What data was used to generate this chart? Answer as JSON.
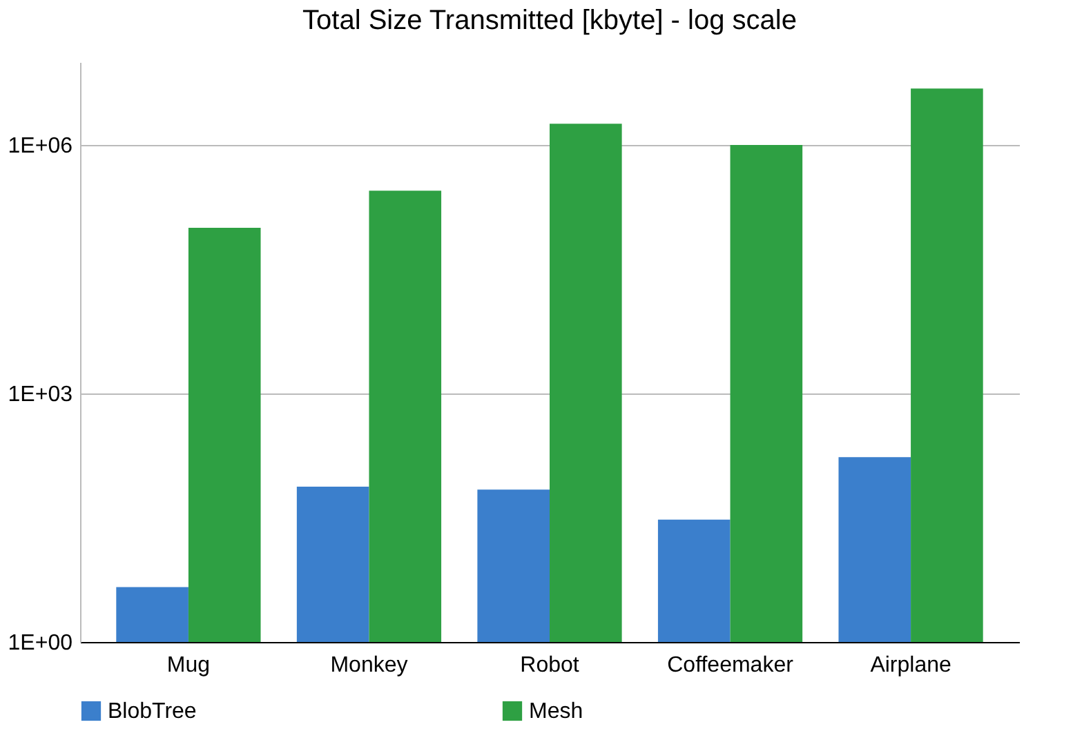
{
  "chart_data": {
    "type": "bar",
    "title": "Total Size Transmitted [kbyte] - log scale",
    "categories": [
      "Mug",
      "Monkey",
      "Robot",
      "Coffeemaker",
      "Airplane"
    ],
    "series": [
      {
        "name": "BlobTree",
        "color": "#3b7fcc",
        "values": [
          4.6,
          75,
          69,
          30,
          170
        ]
      },
      {
        "name": "Mesh",
        "color": "#2ea043",
        "values": [
          100000,
          280000,
          1800000,
          1000000,
          4800000
        ]
      }
    ],
    "log": true,
    "ylim": [
      1,
      10000000
    ],
    "yticks": [
      {
        "value": 1,
        "label": "1E+00"
      },
      {
        "value": 1000,
        "label": "1E+03"
      },
      {
        "value": 1000000,
        "label": "1E+06"
      }
    ],
    "grid": "y",
    "legend": "bottom"
  }
}
